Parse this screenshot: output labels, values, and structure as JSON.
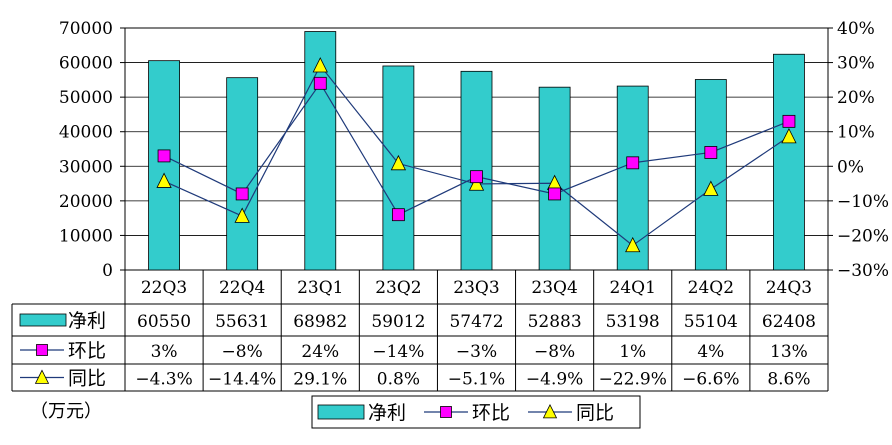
{
  "chart_data": {
    "type": "bar",
    "categories": [
      "22Q3",
      "22Q4",
      "23Q1",
      "23Q2",
      "23Q3",
      "23Q4",
      "24Q1",
      "24Q2",
      "24Q3"
    ],
    "series": [
      {
        "name": "净利",
        "type": "bar",
        "axis": "left",
        "values": [
          60550,
          55631,
          68982,
          59012,
          57472,
          52883,
          53198,
          55104,
          62408
        ],
        "labels": [
          "60550",
          "55631",
          "68982",
          "59012",
          "57472",
          "52883",
          "53198",
          "55104",
          "62408"
        ]
      },
      {
        "name": "环比",
        "type": "line",
        "axis": "right",
        "values": [
          3,
          -8,
          24,
          -14,
          -3,
          -8,
          1,
          4,
          13
        ],
        "labels": [
          "3%",
          "−8%",
          "24%",
          "−14%",
          "−3%",
          "−8%",
          "1%",
          "4%",
          "13%"
        ]
      },
      {
        "name": "同比",
        "type": "line",
        "axis": "right",
        "values": [
          -4.3,
          -14.4,
          29.1,
          0.8,
          -5.1,
          -4.9,
          -22.9,
          -6.6,
          8.6
        ],
        "labels": [
          "−4.3%",
          "−14.4%",
          "29.1%",
          "0.8%",
          "−5.1%",
          "−4.9%",
          "−22.9%",
          "−6.6%",
          "8.6%"
        ]
      }
    ],
    "ylim": [
      0,
      70000
    ],
    "y_ticks": [
      "0",
      "10000",
      "20000",
      "30000",
      "40000",
      "50000",
      "60000",
      "70000"
    ],
    "y2lim": [
      -30,
      40
    ],
    "y2_ticks": [
      "−30%",
      "−20%",
      "−10%",
      "0%",
      "10%",
      "20%",
      "30%",
      "40%"
    ],
    "unit_label": "（万元）",
    "legend_position": "bottom-center",
    "colors": {
      "bar": "#33CCCC",
      "huanbi": "#FF00FF",
      "tongbi": "#FFFF00",
      "line": "#1F3A7A"
    }
  }
}
